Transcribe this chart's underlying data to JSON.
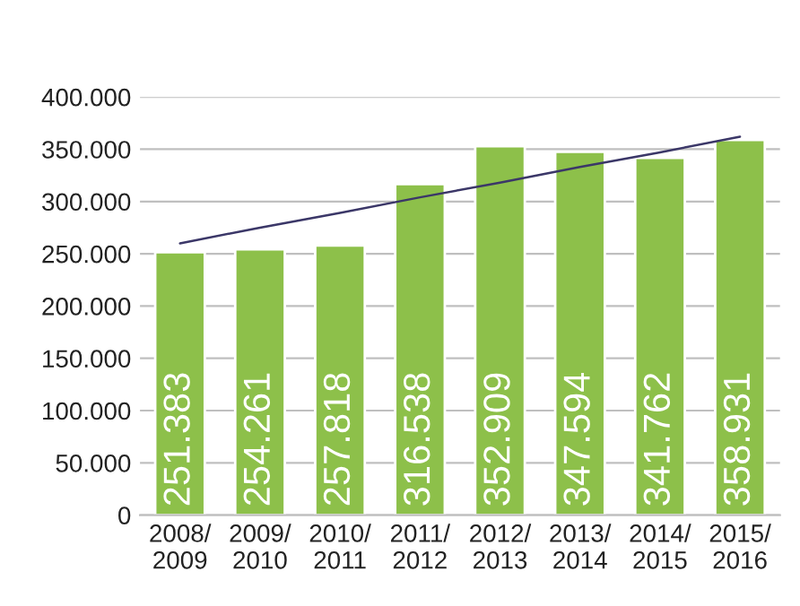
{
  "chart_data": {
    "type": "bar",
    "categories": [
      "2008/\n2009",
      "2009/\n2010",
      "2010/\n2011",
      "2011/\n2012",
      "2012/\n2013",
      "2013/\n2014",
      "2014/\n2015",
      "2015/\n2016"
    ],
    "series": [
      {
        "color": "#8dc04a",
        "values": [
          251383,
          254261,
          257818,
          316538,
          352909,
          347594,
          341762,
          358931
        ],
        "value_labels": [
          "251.383",
          "254.261",
          "257.818",
          "316.538",
          "352.909",
          "347.594",
          "341.762",
          "358.931"
        ]
      },
      {
        "type": "line",
        "color": "#3b3768",
        "values": [
          260000,
          275000,
          289000,
          304000,
          318000,
          333000,
          347000,
          362000
        ]
      }
    ],
    "ylim": [
      0,
      400000
    ],
    "yticks": [
      {
        "value": 0,
        "label": "0"
      },
      {
        "value": 50000,
        "label": "50.000"
      },
      {
        "value": 100000,
        "label": "100.000"
      },
      {
        "value": 150000,
        "label": "150.000"
      },
      {
        "value": 200000,
        "label": "200.000"
      },
      {
        "value": 250000,
        "label": "250.000"
      },
      {
        "value": 300000,
        "label": "300.000"
      },
      {
        "value": 350000,
        "label": "350.000"
      },
      {
        "value": 400000,
        "label": "400.000"
      }
    ],
    "grid": "y",
    "legend": false
  }
}
